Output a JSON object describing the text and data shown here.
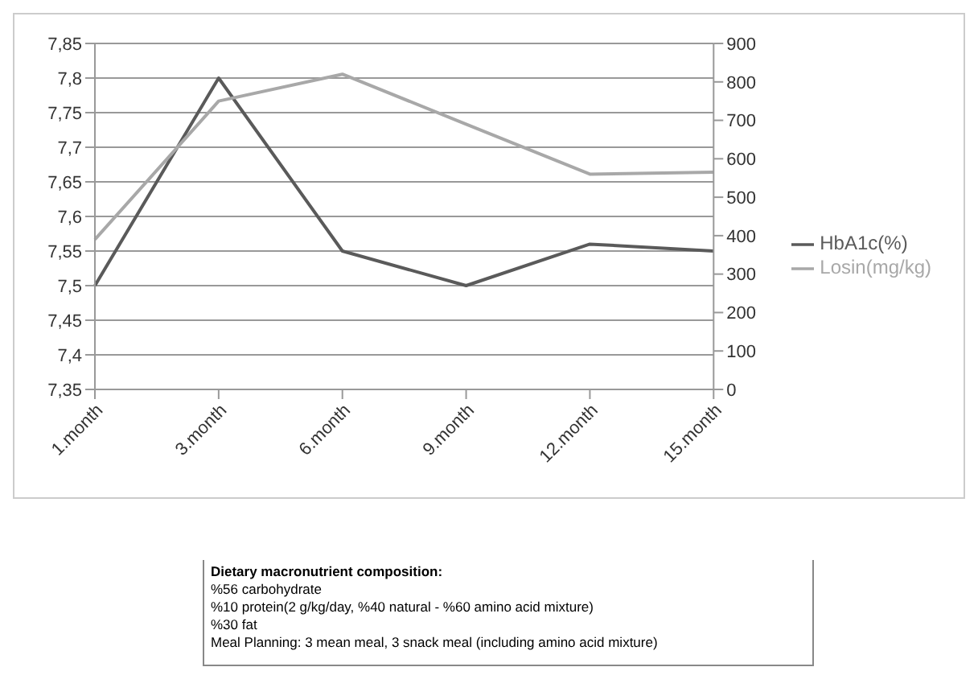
{
  "chart_data": {
    "type": "line",
    "categories": [
      "1.month",
      "3.month",
      "6.month",
      "9.month",
      "12.month",
      "15.month"
    ],
    "series": [
      {
        "name": "HbA1c(%)",
        "color": "#5a5a5a",
        "values": [
          7.5,
          7.8,
          7.55,
          7.5,
          7.56,
          7.55
        ]
      },
      {
        "name": "Losin(mg/kg)",
        "color": "#a8a8a8",
        "values": [
          390,
          750,
          820,
          690,
          560,
          565
        ],
        "axis": "y2"
      }
    ],
    "ylim": [
      7.35,
      7.85
    ],
    "yticks": [
      {
        "value": 7.35,
        "label": "7,35"
      },
      {
        "value": 7.4,
        "label": "7,4"
      },
      {
        "value": 7.45,
        "label": "7,45"
      },
      {
        "value": 7.5,
        "label": "7,5"
      },
      {
        "value": 7.55,
        "label": "7,55"
      },
      {
        "value": 7.6,
        "label": "7,6"
      },
      {
        "value": 7.65,
        "label": "7,65"
      },
      {
        "value": 7.7,
        "label": "7,7"
      },
      {
        "value": 7.75,
        "label": "7,75"
      },
      {
        "value": 7.8,
        "label": "7,8"
      },
      {
        "value": 7.85,
        "label": "7,85"
      }
    ],
    "y2lim": [
      0,
      900
    ],
    "y2ticks": [
      0,
      100,
      200,
      300,
      400,
      500,
      600,
      700,
      800,
      900
    ],
    "grid": "y",
    "legend": "right",
    "marker": "none",
    "line_style": "solid",
    "annotations": [
      "Dietary macronutrient composition:",
      "%56 carbohydrate",
      "%10 protein(2 g/kg/day, %40 natural - %60 amino acid mixture)",
      "%30 fat",
      "Meal Planning: 3 mean meal, 3 snack meal (including amino acid mixture)"
    ]
  }
}
